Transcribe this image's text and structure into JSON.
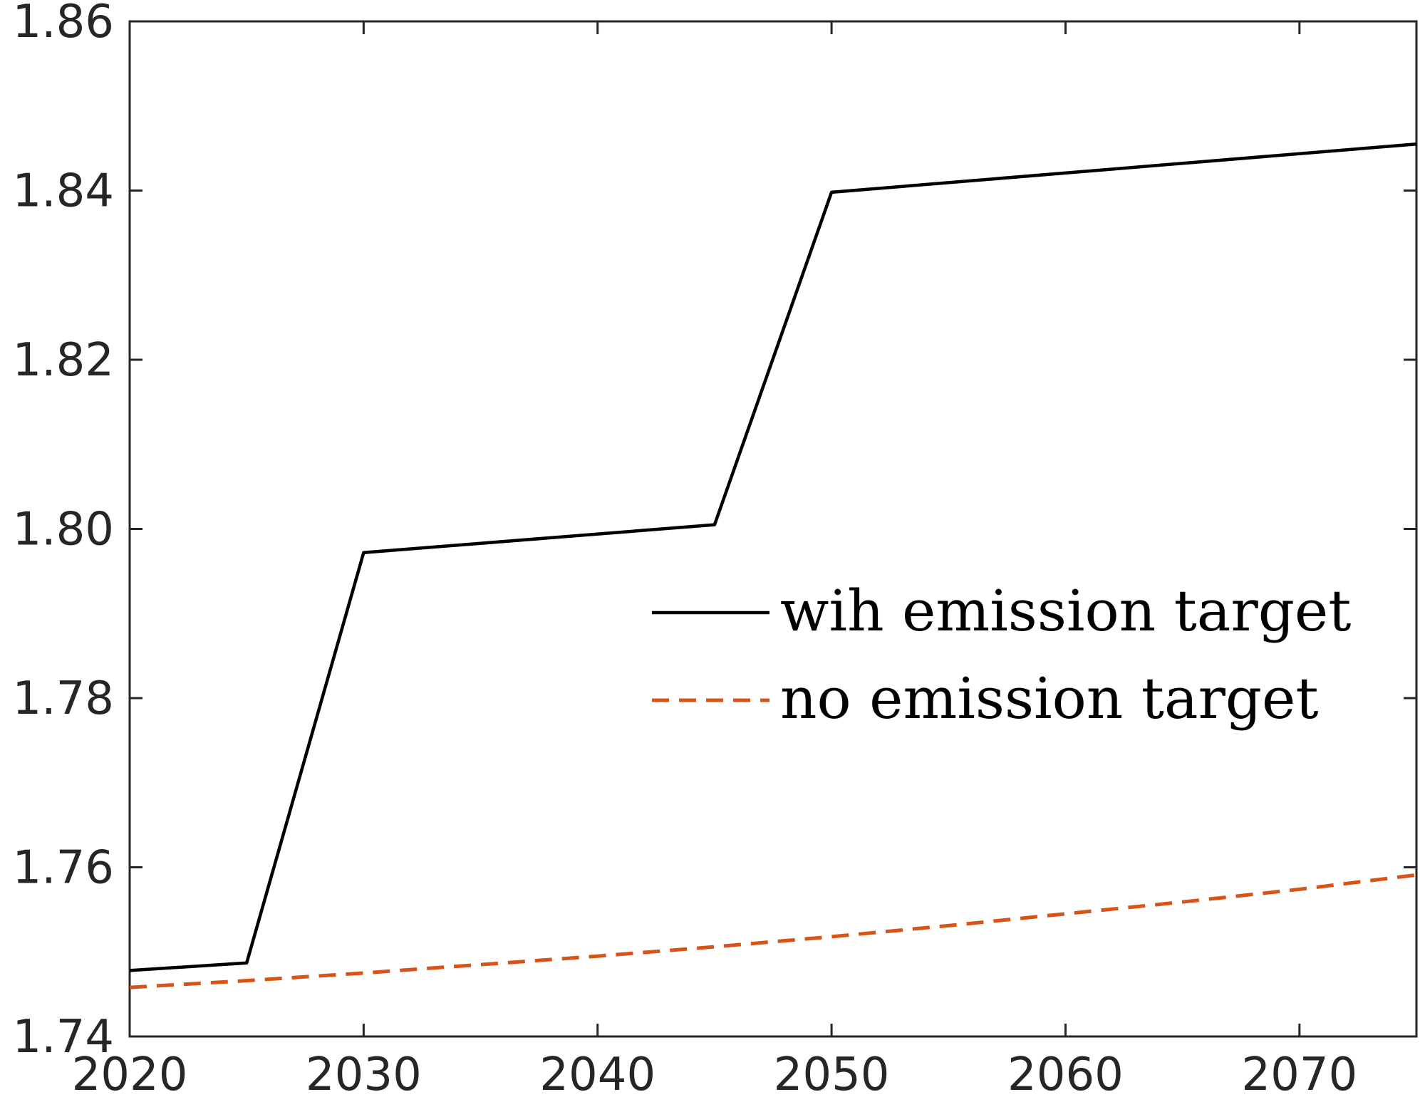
{
  "chart_data": {
    "type": "line",
    "title": "",
    "xlabel": "",
    "ylabel": "",
    "xlim": [
      2020,
      2075
    ],
    "ylim": [
      1.74,
      1.86
    ],
    "x_ticks": [
      2020,
      2030,
      2040,
      2050,
      2060,
      2070
    ],
    "x_tick_labels": [
      "2020",
      "2030",
      "2040",
      "2050",
      "2060",
      "2070"
    ],
    "y_ticks": [
      1.74,
      1.76,
      1.78,
      1.8,
      1.82,
      1.84,
      1.86
    ],
    "y_tick_labels": [
      "1.74",
      "1.76",
      "1.78",
      "1.80",
      "1.82",
      "1.84",
      "1.86"
    ],
    "grid": false,
    "box": true,
    "legend_position": "right",
    "series": [
      {
        "name": "wih emission target",
        "color": "#000000",
        "style": "solid",
        "x": [
          2020,
          2025,
          2030,
          2045,
          2050,
          2075
        ],
        "y": [
          1.7478,
          1.7487,
          1.7972,
          1.8005,
          1.8398,
          1.8455
        ]
      },
      {
        "name": "no emission target",
        "color": "#D95319",
        "style": "dashed",
        "x": [
          2020,
          2025,
          2030,
          2035,
          2040,
          2045,
          2050,
          2055,
          2060,
          2065,
          2070,
          2075
        ],
        "y": [
          1.7458,
          1.7466,
          1.7475,
          1.7485,
          1.7495,
          1.7506,
          1.7518,
          1.7531,
          1.7545,
          1.7559,
          1.7574,
          1.7591
        ]
      }
    ]
  }
}
